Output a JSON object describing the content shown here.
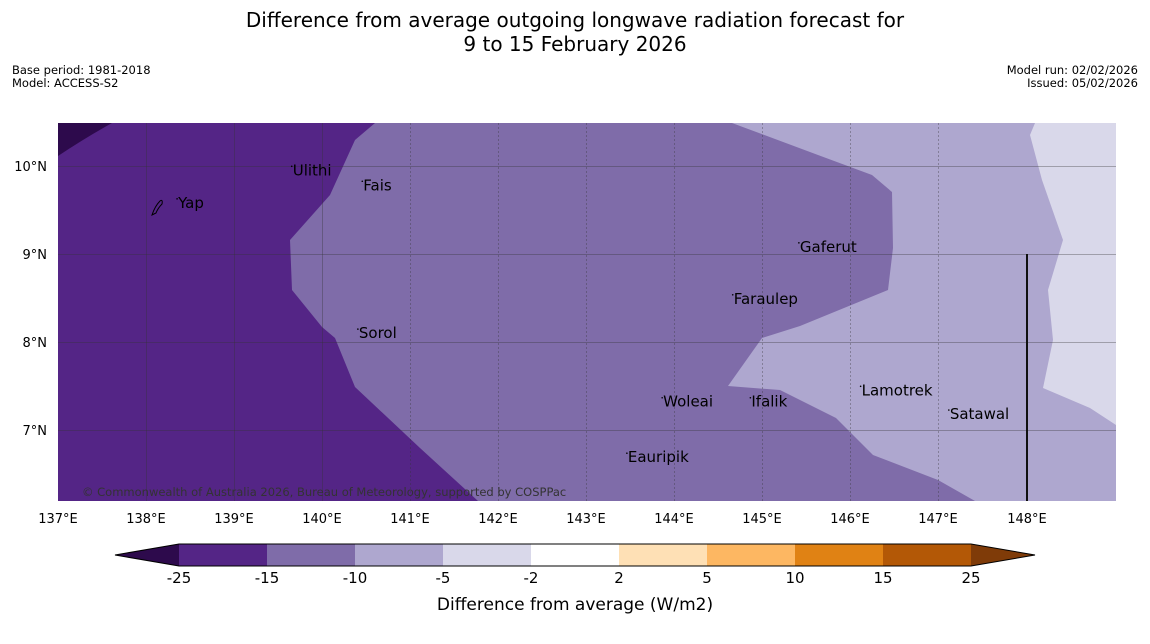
{
  "title": {
    "line1": "Difference from average outgoing longwave radiation forecast for",
    "line2": "9 to 15 February 2026"
  },
  "meta": {
    "base_period": "Base period: 1981-2018",
    "model": "Model: ACCESS-S2",
    "model_run": "Model run: 02/02/2026",
    "issued": "Issued: 05/02/2026"
  },
  "map": {
    "places": [
      {
        "name": "Yap",
        "lon": 138.35,
        "lat": 9.53
      },
      {
        "name": "Ulithi",
        "lon": 139.65,
        "lat": 9.9
      },
      {
        "name": "Fais",
        "lon": 140.45,
        "lat": 9.73
      },
      {
        "name": "Gaferut",
        "lon": 145.4,
        "lat": 9.03
      },
      {
        "name": "Faraulep",
        "lon": 144.65,
        "lat": 8.44
      },
      {
        "name": "Sorol",
        "lon": 140.4,
        "lat": 8.05
      },
      {
        "name": "Woleai",
        "lon": 143.85,
        "lat": 7.27
      },
      {
        "name": "Ifalik",
        "lon": 144.85,
        "lat": 7.27
      },
      {
        "name": "Lamotrek",
        "lon": 146.1,
        "lat": 7.4
      },
      {
        "name": "Satawal",
        "lon": 147.1,
        "lat": 7.13
      },
      {
        "name": "Eauripik",
        "lon": 143.45,
        "lat": 6.64
      }
    ],
    "lat_ticks": [
      "10°N",
      "9°N",
      "8°N",
      "7°N"
    ],
    "lon_ticks": [
      "137°E",
      "138°E",
      "139°E",
      "140°E",
      "141°E",
      "142°E",
      "143°E",
      "144°E",
      "145°E",
      "146°E",
      "147°E",
      "148°E"
    ],
    "copyright": "© Commonwealth of Australia 2026, Bureau of Meteorology, supported by COSPPac"
  },
  "colorbar": {
    "label": "Difference from average (W/m2)",
    "ticks": [
      "-25",
      "-15",
      "-10",
      "-5",
      "-2",
      "2",
      "5",
      "10",
      "15",
      "25"
    ],
    "colors": [
      "#2d0a4c",
      "#542586",
      "#7f6ca9",
      "#aea7cf",
      "#d9d8ea",
      "#ffffff",
      "#fee0b5",
      "#fdb762",
      "#e08214",
      "#b35806",
      "#7f3b08"
    ]
  }
}
